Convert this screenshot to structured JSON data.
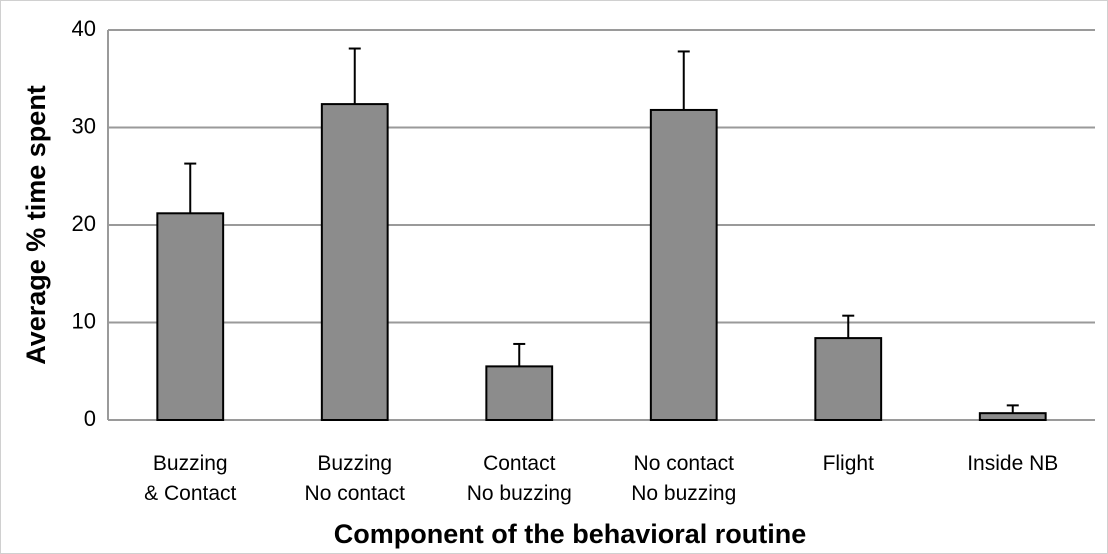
{
  "chart_data": {
    "type": "bar",
    "x_label": "Component of the behavioral routine",
    "y_label": "Average % time spent",
    "categories": [
      "Buzzing\n& Contact",
      "Buzzing\nNo contact",
      "Contact\nNo buzzing",
      "No contact\nNo buzzing",
      "Flight",
      "Inside NB"
    ],
    "values": [
      21.2,
      32.4,
      5.5,
      31.8,
      8.4,
      0.7
    ],
    "errors": [
      5.1,
      5.7,
      2.3,
      6.0,
      2.3,
      0.8
    ],
    "color": "#8c8c8c",
    "ylim": [
      0,
      40
    ],
    "yticks": [
      0,
      10,
      20,
      30,
      40
    ],
    "grid": true
  }
}
